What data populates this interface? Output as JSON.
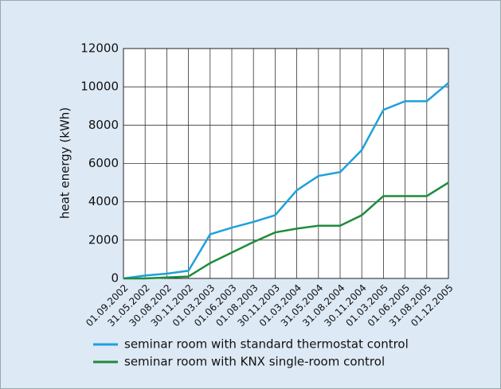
{
  "chart_data": {
    "type": "line",
    "y_label": "heat energy (kWh)",
    "categories": [
      "01.09.2002",
      "31.05.2002",
      "30.08.2002",
      "30.11.2002",
      "01.03.2003",
      "01.06.2003",
      "01.08.2003",
      "30.11.2003",
      "01.03.2004",
      "31.05.2004",
      "31.08.2004",
      "30.11.2004",
      "01.03.2005",
      "01.06.2005",
      "31.08.2005",
      "01.12.2005"
    ],
    "series": [
      {
        "name": "seminar room with standard thermostat control",
        "color": "#1ea0dc",
        "values": [
          0,
          150,
          250,
          400,
          2300,
          2650,
          2950,
          3300,
          4600,
          5350,
          5550,
          6700,
          8800,
          9250,
          9250,
          10200
        ]
      },
      {
        "name": "seminar room with KNX single-room control",
        "color": "#1e8c3c",
        "values": [
          0,
          0,
          50,
          100,
          800,
          1350,
          1900,
          2400,
          2600,
          2750,
          2750,
          3300,
          4300,
          4300,
          4300,
          5000
        ]
      }
    ],
    "ylim": [
      0,
      12000
    ],
    "yticks": [
      0,
      2000,
      4000,
      6000,
      8000,
      10000,
      12000
    ],
    "grid": true
  }
}
